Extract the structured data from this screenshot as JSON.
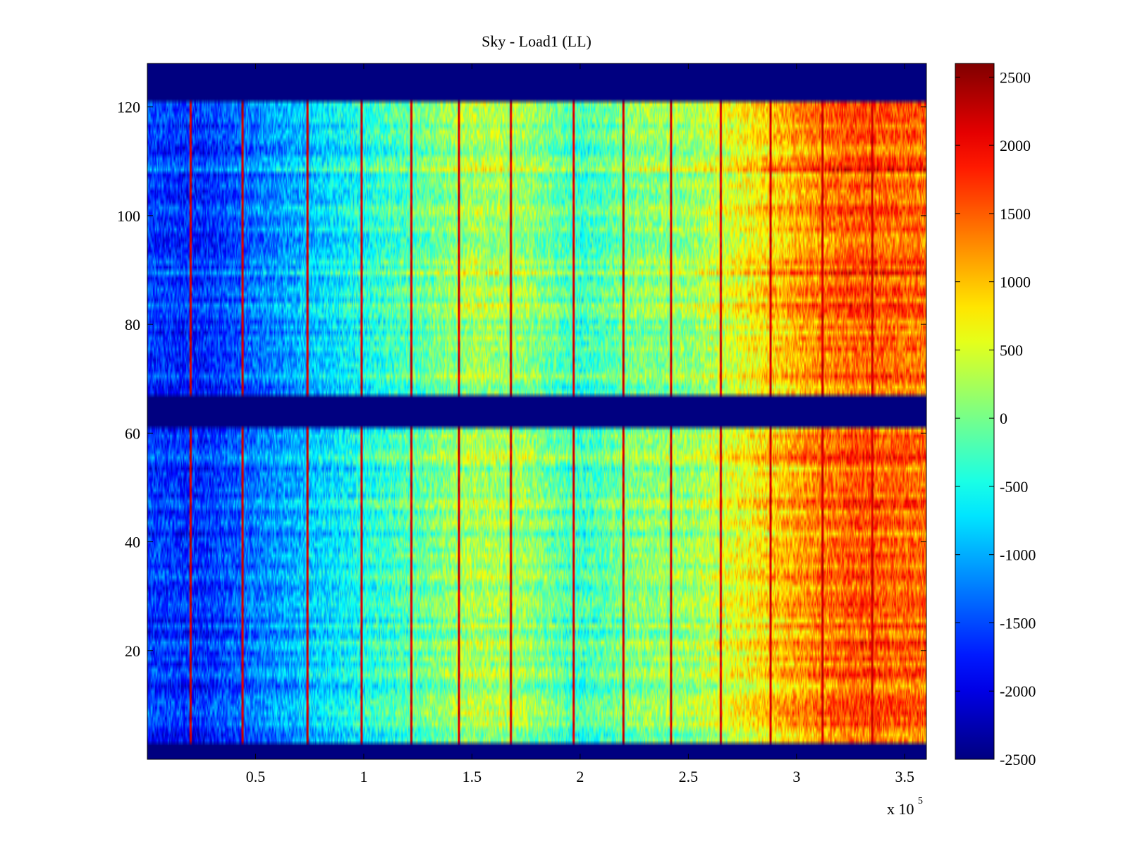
{
  "chart_data": {
    "type": "heatmap",
    "title": "Sky - Load1 (LL)",
    "xlabel": "",
    "ylabel": "",
    "x_range": [
      0,
      3.6
    ],
    "x_exponent_label": "x 10",
    "x_exponent_power": "5",
    "y_range": [
      0,
      128
    ],
    "x_ticks": [
      0.5,
      1,
      1.5,
      2,
      2.5,
      3,
      3.5
    ],
    "x_tick_labels": [
      "0.5",
      "1",
      "1.5",
      "2",
      "2.5",
      "3",
      "3.5"
    ],
    "y_ticks": [
      20,
      40,
      60,
      80,
      100,
      120
    ],
    "y_tick_labels": [
      "20",
      "40",
      "60",
      "80",
      "100",
      "120"
    ],
    "colorbar": {
      "colormap": "jet",
      "range": [
        -2500,
        2600
      ],
      "ticks": [
        -2500,
        -2000,
        -1500,
        -1000,
        -500,
        0,
        500,
        1000,
        1500,
        2000,
        2500
      ],
      "tick_labels": [
        "-2500",
        "-2000",
        "-1500",
        "-1000",
        "-500",
        "0",
        "500",
        "1000",
        "1500",
        "2000",
        "2500"
      ]
    },
    "masked_rows": [
      [
        0,
        3
      ],
      [
        61,
        67
      ],
      [
        121,
        128
      ]
    ],
    "masked_value": -2500,
    "data_row_blocks": [
      [
        3,
        61
      ],
      [
        67,
        121
      ]
    ],
    "column_trend": {
      "x": [
        0,
        0.25,
        0.5,
        0.75,
        1.0,
        1.25,
        1.5,
        1.75,
        2.0,
        2.25,
        2.5,
        2.75,
        3.0,
        3.25,
        3.6
      ],
      "value": [
        -1600,
        -1700,
        -1300,
        -900,
        -500,
        -150,
        250,
        150,
        -350,
        50,
        150,
        600,
        1100,
        1500,
        1400
      ]
    },
    "spike_columns": [
      0.2,
      0.44,
      0.74,
      0.99,
      1.22,
      1.44,
      1.68,
      1.97,
      2.2,
      2.42,
      2.65,
      2.88,
      3.12,
      3.35
    ],
    "spike_value": 2200,
    "hot_rows": [
      13,
      19,
      38,
      44,
      72,
      80,
      106,
      112
    ]
  }
}
